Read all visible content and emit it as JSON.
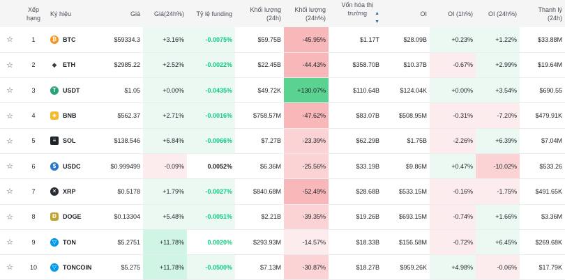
{
  "headers": {
    "rank": "Xếp hạng",
    "symbol": "Ký hiệu",
    "price": "Giá",
    "price_change": "Giá(24h%)",
    "funding": "Tỷ lệ funding",
    "volume": "Khối lượng (24h)",
    "volume_change": "Khối lượng (24h%)",
    "market_cap_line1": "Vốn hóa thị",
    "market_cap_line2": "trường",
    "oi": "OI",
    "oi_1h": "OI (1h%)",
    "oi_24h": "OI (24h%)",
    "liquidation": "Thanh lý (24h)"
  },
  "colors": {
    "green_strong": "#d1f5e4",
    "green_light": "#ebf9f2",
    "green_vivid": "#5ad391",
    "red_strong": "#f8b7b9",
    "red_mid": "#fbd3d4",
    "red_light": "#fdeced"
  },
  "rows": [
    {
      "rank": "1",
      "symbol": "BTC",
      "icon": "bitcoin-icon",
      "iconColor": "#f7931a",
      "glyph": "₿",
      "price": "$59334.3",
      "pc": "+3.16%",
      "fund": "-0.0075%",
      "vol": "$59.75B",
      "vc": "-45.95%",
      "cap": "$1.17T",
      "oi": "$28.09B",
      "oi1": "+0.23%",
      "oi24": "+1.22%",
      "liq": "$33.88M"
    },
    {
      "rank": "2",
      "symbol": "ETH",
      "icon": "ethereum-icon",
      "iconColor": "#ffffff",
      "glyph": "◆",
      "price": "$2985.22",
      "pc": "+2.52%",
      "fund": "-0.0022%",
      "vol": "$22.45B",
      "vc": "-44.43%",
      "cap": "$358.70B",
      "oi": "$10.37B",
      "oi1": "-0.67%",
      "oi24": "+2.99%",
      "liq": "$19.64M"
    },
    {
      "rank": "3",
      "symbol": "USDT",
      "icon": "tether-icon",
      "iconColor": "#26a17b",
      "glyph": "T",
      "price": "$1.05",
      "pc": "+0.00%",
      "fund": "-0.0435%",
      "vol": "$49.72K",
      "vc": "+130.07%",
      "cap": "$110.64B",
      "oi": "$124.04K",
      "oi1": "+0.00%",
      "oi24": "+3.54%",
      "liq": "$690.55"
    },
    {
      "rank": "4",
      "symbol": "BNB",
      "icon": "bnb-icon",
      "iconColor": "#f3ba2f",
      "glyph": "◈",
      "price": "$562.37",
      "pc": "+2.71%",
      "fund": "-0.0016%",
      "vol": "$758.57M",
      "vc": "-47.62%",
      "cap": "$83.07B",
      "oi": "$508.95M",
      "oi1": "-0.31%",
      "oi24": "-7.20%",
      "liq": "$479.91K"
    },
    {
      "rank": "5",
      "symbol": "SOL",
      "icon": "solana-icon",
      "iconColor": "#1e2329",
      "glyph": "≡",
      "price": "$138.546",
      "pc": "+6.84%",
      "fund": "-0.0066%",
      "vol": "$7.27B",
      "vc": "-23.39%",
      "cap": "$62.29B",
      "oi": "$1.75B",
      "oi1": "-2.26%",
      "oi24": "+6.39%",
      "liq": "$7.04M"
    },
    {
      "rank": "6",
      "symbol": "USDC",
      "icon": "usdc-icon",
      "iconColor": "#2775ca",
      "glyph": "$",
      "price": "$0.999499",
      "pc": "-0.09%",
      "fund": "0.0052%",
      "vol": "$6.36M",
      "vc": "-25.56%",
      "cap": "$33.19B",
      "oi": "$9.86M",
      "oi1": "+0.47%",
      "oi24": "-10.02%",
      "liq": "$533.26"
    },
    {
      "rank": "7",
      "symbol": "XRP",
      "icon": "xrp-icon",
      "iconColor": "#23292f",
      "glyph": "✕",
      "price": "$0.5178",
      "pc": "+1.79%",
      "fund": "-0.0027%",
      "vol": "$840.68M",
      "vc": "-52.49%",
      "cap": "$28.68B",
      "oi": "$533.15M",
      "oi1": "-0.16%",
      "oi24": "-1.75%",
      "liq": "$491.65K"
    },
    {
      "rank": "8",
      "symbol": "DOGE",
      "icon": "dogecoin-icon",
      "iconColor": "#c2a633",
      "glyph": "Ð",
      "price": "$0.13304",
      "pc": "+5.48%",
      "fund": "-0.0051%",
      "vol": "$2.21B",
      "vc": "-39.35%",
      "cap": "$19.26B",
      "oi": "$693.15M",
      "oi1": "-0.74%",
      "oi24": "+1.66%",
      "liq": "$3.36M"
    },
    {
      "rank": "9",
      "symbol": "TON",
      "icon": "toncoin-icon",
      "iconColor": "#0098ea",
      "glyph": "▽",
      "price": "$5.2751",
      "pc": "+11.78%",
      "fund": "0.0020%",
      "vol": "$293.93M",
      "vc": "-14.57%",
      "cap": "$18.33B",
      "oi": "$156.58M",
      "oi1": "-0.72%",
      "oi24": "+6.45%",
      "liq": "$269.68K"
    },
    {
      "rank": "10",
      "symbol": "TONCOIN",
      "icon": "toncoin-icon",
      "iconColor": "#0098ea",
      "glyph": "▽",
      "price": "$5.275",
      "pc": "+11.78%",
      "fund": "-0.0500%",
      "vol": "$7.13M",
      "vc": "-30.87%",
      "cap": "$18.27B",
      "oi": "$959.26K",
      "oi1": "+4.98%",
      "oi24": "-0.06%",
      "liq": "$17.79K"
    }
  ]
}
